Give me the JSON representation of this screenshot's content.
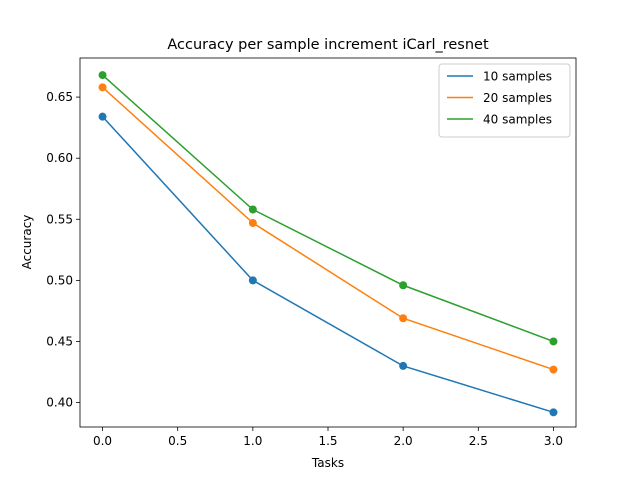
{
  "chart_data": {
    "type": "line",
    "title": "Accuracy per sample increment iCarl_resnet",
    "xlabel": "Tasks",
    "ylabel": "Accuracy",
    "xlim": [
      -0.15,
      3.15
    ],
    "ylim": [
      0.38,
      0.682
    ],
    "xticks": [
      0.0,
      0.5,
      1.0,
      1.5,
      2.0,
      2.5,
      3.0
    ],
    "xtick_labels": [
      "0.0",
      "0.5",
      "1.0",
      "1.5",
      "2.0",
      "2.5",
      "3.0"
    ],
    "yticks": [
      0.4,
      0.45,
      0.5,
      0.55,
      0.6,
      0.65
    ],
    "ytick_labels": [
      "0.40",
      "0.45",
      "0.50",
      "0.55",
      "0.60",
      "0.65"
    ],
    "grid": false,
    "legend_position": "top-right",
    "x": [
      0,
      1,
      2,
      3
    ],
    "series": [
      {
        "name": "10 samples",
        "color": "#1f77b4",
        "values": [
          0.634,
          0.5,
          0.43,
          0.392
        ]
      },
      {
        "name": "20 samples",
        "color": "#ff7f0e",
        "values": [
          0.658,
          0.547,
          0.469,
          0.427
        ]
      },
      {
        "name": "40 samples",
        "color": "#2ca02c",
        "values": [
          0.668,
          0.558,
          0.496,
          0.45
        ]
      }
    ]
  }
}
